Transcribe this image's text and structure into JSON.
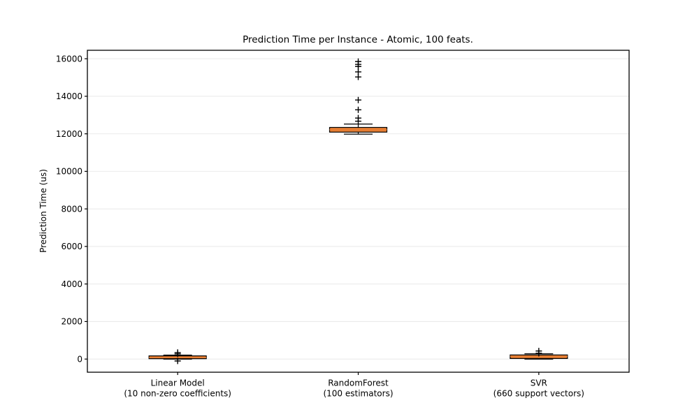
{
  "figure": {
    "background": "#ffffff"
  },
  "chart_data": {
    "type": "boxplot",
    "title": "Prediction Time per Instance - Atomic, 100 feats.",
    "ylabel": "Prediction Time (us)",
    "xlabel": "",
    "ylim": [
      -700,
      16450
    ],
    "yticks": [
      0,
      2000,
      4000,
      6000,
      8000,
      10000,
      12000,
      14000,
      16000
    ],
    "grid": "horizontal-light",
    "legend": "none",
    "flier_marker": "plus",
    "colors": {
      "box_fill": "#e67e33",
      "box_edge": "#000000",
      "median": "#e67e33",
      "whisker": "#000000",
      "flier": "#000000",
      "gridline": "#ebebeb",
      "axis": "#000000",
      "text": "#000000"
    },
    "groups": [
      {
        "label_line1": "Linear Model",
        "label_line2": "(10 non-zero coefficients)",
        "stats": {
          "whislo": 0,
          "q1": 20,
          "med": 90,
          "q3": 170,
          "whishi": 210
        },
        "fliers": [
          350,
          280,
          -100
        ]
      },
      {
        "label_line1": "RandomForest",
        "label_line2": "(100 estimators)",
        "stats": {
          "whislo": 11980,
          "q1": 12090,
          "med": 12220,
          "q3": 12340,
          "whishi": 12520
        },
        "fliers": [
          12670,
          12840,
          13280,
          13800,
          15030,
          15300,
          15590,
          15700,
          15850
        ]
      },
      {
        "label_line1": "SVR",
        "label_line2": "(660 support vectors)",
        "stats": {
          "whislo": 0,
          "q1": 30,
          "med": 150,
          "q3": 220,
          "whishi": 280
        },
        "fliers": [
          430,
          310
        ]
      }
    ]
  }
}
